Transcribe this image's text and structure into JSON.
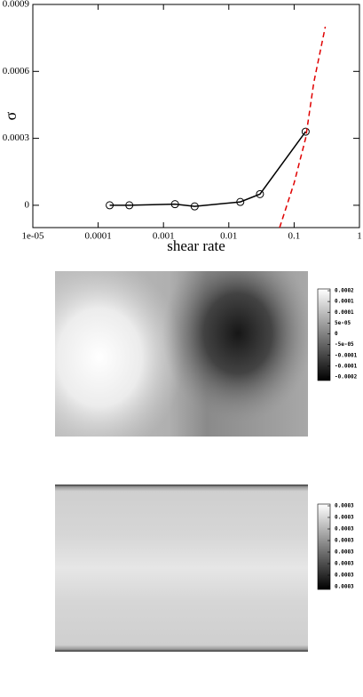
{
  "chart_data": {
    "type": "line",
    "xlabel": "shear rate",
    "ylabel": "σ",
    "xscale": "log",
    "xlim": [
      1e-05,
      1
    ],
    "ylim": [
      -0.0001,
      0.0009
    ],
    "xticks": [
      {
        "value": 1e-05,
        "label": "1e-05"
      },
      0.0001,
      0.001,
      0.01,
      0.1,
      1
    ],
    "yticks": [
      0,
      0.0003,
      0.0006,
      0.0009
    ],
    "series": [
      {
        "color": "#000000",
        "marker": "circle",
        "dashed": false,
        "x": [
          0.00015,
          0.0003,
          0.0015,
          0.003,
          0.015,
          0.03,
          0.15
        ],
        "values": [
          0,
          0,
          5e-06,
          -5e-06,
          1.5e-05,
          5e-05,
          0.00033
        ]
      },
      {
        "color": "#e00000",
        "marker": "none",
        "dashed": true,
        "x": [
          0.06,
          0.1,
          0.15,
          0.2,
          0.3
        ],
        "values": [
          -0.0001,
          0.0001,
          0.0003,
          0.00055,
          0.0008
        ]
      }
    ]
  },
  "panels": [
    {
      "colorbar_labels": [
        "0.0002",
        "0.0001",
        "0.0001",
        "5e-05",
        "0",
        "-5e-05",
        "-0.0001",
        "-0.0001",
        "-0.0002"
      ]
    },
    {
      "colorbar_labels": [
        "0.0003",
        "0.0003",
        "0.0003",
        "0.0003",
        "0.0003",
        "0.0003",
        "0.0003",
        "0.0003"
      ]
    }
  ]
}
